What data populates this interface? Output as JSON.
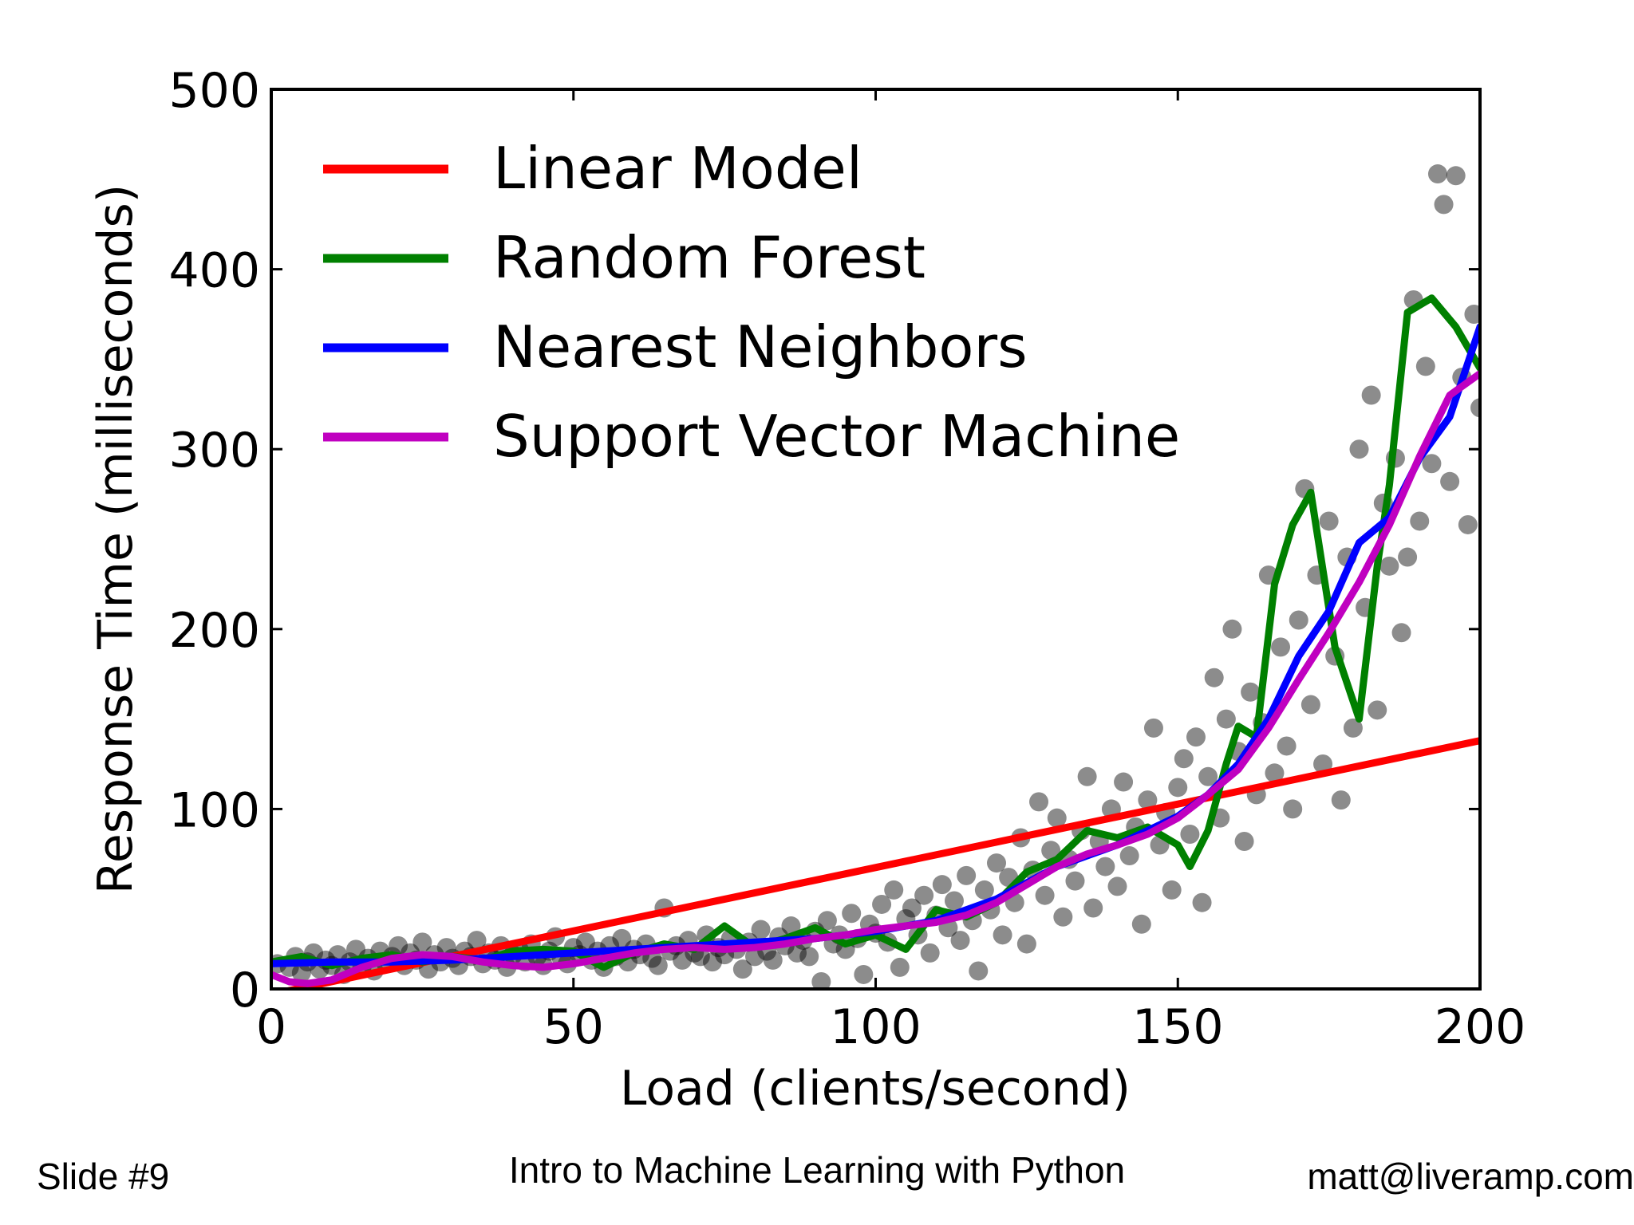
{
  "chart_data": {
    "type": "scatter",
    "xlabel": "Load (clients/second)",
    "ylabel": "Response Time (milliseconds)",
    "xlim": [
      0,
      200
    ],
    "ylim": [
      0,
      500
    ],
    "x_ticks": [
      "0",
      "50",
      "100",
      "150",
      "200"
    ],
    "y_ticks": [
      "0",
      "100",
      "200",
      "300",
      "400",
      "500"
    ],
    "legend_position": "top-left",
    "scatter_color": "#000000",
    "points": [
      [
        1,
        14
      ],
      [
        3,
        12
      ],
      [
        4,
        18
      ],
      [
        5,
        9
      ],
      [
        6,
        15
      ],
      [
        7,
        20
      ],
      [
        8,
        11
      ],
      [
        9,
        16
      ],
      [
        10,
        13
      ],
      [
        11,
        19
      ],
      [
        12,
        8
      ],
      [
        13,
        15
      ],
      [
        14,
        22
      ],
      [
        15,
        12
      ],
      [
        16,
        17
      ],
      [
        17,
        10
      ],
      [
        18,
        21
      ],
      [
        19,
        14
      ],
      [
        20,
        18
      ],
      [
        21,
        24
      ],
      [
        22,
        13
      ],
      [
        23,
        20
      ],
      [
        24,
        16
      ],
      [
        25,
        26
      ],
      [
        26,
        11
      ],
      [
        27,
        19
      ],
      [
        28,
        15
      ],
      [
        29,
        23
      ],
      [
        30,
        17
      ],
      [
        31,
        13
      ],
      [
        32,
        21
      ],
      [
        33,
        18
      ],
      [
        34,
        27
      ],
      [
        35,
        14
      ],
      [
        36,
        20
      ],
      [
        37,
        16
      ],
      [
        38,
        24
      ],
      [
        39,
        12
      ],
      [
        40,
        19
      ],
      [
        41,
        22
      ],
      [
        42,
        15
      ],
      [
        43,
        25
      ],
      [
        44,
        18
      ],
      [
        45,
        13
      ],
      [
        46,
        21
      ],
      [
        47,
        29
      ],
      [
        48,
        17
      ],
      [
        49,
        14
      ],
      [
        50,
        23
      ],
      [
        51,
        19
      ],
      [
        52,
        26
      ],
      [
        53,
        16
      ],
      [
        54,
        21
      ],
      [
        55,
        12
      ],
      [
        56,
        24
      ],
      [
        57,
        18
      ],
      [
        58,
        28
      ],
      [
        59,
        15
      ],
      [
        60,
        22
      ],
      [
        61,
        19
      ],
      [
        62,
        25
      ],
      [
        63,
        17
      ],
      [
        64,
        13
      ],
      [
        65,
        45
      ],
      [
        66,
        21
      ],
      [
        67,
        24
      ],
      [
        68,
        16
      ],
      [
        69,
        27
      ],
      [
        70,
        20
      ],
      [
        71,
        18
      ],
      [
        72,
        30
      ],
      [
        73,
        15
      ],
      [
        74,
        23
      ],
      [
        75,
        19
      ],
      [
        76,
        28
      ],
      [
        77,
        22
      ],
      [
        78,
        11
      ],
      [
        79,
        26
      ],
      [
        80,
        18
      ],
      [
        81,
        33
      ],
      [
        82,
        21
      ],
      [
        83,
        16
      ],
      [
        84,
        29
      ],
      [
        85,
        24
      ],
      [
        86,
        35
      ],
      [
        87,
        20
      ],
      [
        88,
        27
      ],
      [
        89,
        18
      ],
      [
        90,
        32
      ],
      [
        91,
        4
      ],
      [
        92,
        38
      ],
      [
        93,
        25
      ],
      [
        94,
        30
      ],
      [
        95,
        22
      ],
      [
        96,
        42
      ],
      [
        97,
        28
      ],
      [
        98,
        8
      ],
      [
        99,
        36
      ],
      [
        100,
        31
      ],
      [
        101,
        47
      ],
      [
        102,
        26
      ],
      [
        103,
        55
      ],
      [
        104,
        12
      ],
      [
        105,
        39
      ],
      [
        106,
        45
      ],
      [
        107,
        30
      ],
      [
        108,
        52
      ],
      [
        109,
        20
      ],
      [
        110,
        41
      ],
      [
        111,
        58
      ],
      [
        112,
        34
      ],
      [
        113,
        49
      ],
      [
        114,
        27
      ],
      [
        115,
        63
      ],
      [
        116,
        38
      ],
      [
        117,
        10
      ],
      [
        118,
        55
      ],
      [
        119,
        44
      ],
      [
        120,
        70
      ],
      [
        121,
        30
      ],
      [
        122,
        62
      ],
      [
        123,
        48
      ],
      [
        124,
        84
      ],
      [
        125,
        25
      ],
      [
        126,
        66
      ],
      [
        127,
        104
      ],
      [
        128,
        52
      ],
      [
        129,
        77
      ],
      [
        130,
        95
      ],
      [
        131,
        40
      ],
      [
        132,
        72
      ],
      [
        133,
        60
      ],
      [
        134,
        88
      ],
      [
        135,
        118
      ],
      [
        136,
        45
      ],
      [
        137,
        82
      ],
      [
        138,
        68
      ],
      [
        139,
        100
      ],
      [
        140,
        57
      ],
      [
        141,
        115
      ],
      [
        142,
        74
      ],
      [
        143,
        90
      ],
      [
        144,
        36
      ],
      [
        145,
        105
      ],
      [
        146,
        145
      ],
      [
        147,
        80
      ],
      [
        148,
        98
      ],
      [
        149,
        55
      ],
      [
        150,
        112
      ],
      [
        151,
        128
      ],
      [
        152,
        86
      ],
      [
        153,
        140
      ],
      [
        154,
        48
      ],
      [
        155,
        118
      ],
      [
        156,
        173
      ],
      [
        157,
        95
      ],
      [
        158,
        150
      ],
      [
        159,
        200
      ],
      [
        160,
        132
      ],
      [
        161,
        82
      ],
      [
        162,
        165
      ],
      [
        163,
        108
      ],
      [
        164,
        148
      ],
      [
        165,
        230
      ],
      [
        166,
        120
      ],
      [
        167,
        190
      ],
      [
        168,
        135
      ],
      [
        169,
        100
      ],
      [
        170,
        205
      ],
      [
        171,
        278
      ],
      [
        172,
        158
      ],
      [
        173,
        230
      ],
      [
        174,
        125
      ],
      [
        175,
        260
      ],
      [
        176,
        185
      ],
      [
        177,
        105
      ],
      [
        178,
        240
      ],
      [
        179,
        145
      ],
      [
        180,
        300
      ],
      [
        181,
        212
      ],
      [
        182,
        330
      ],
      [
        183,
        155
      ],
      [
        184,
        270
      ],
      [
        185,
        235
      ],
      [
        186,
        295
      ],
      [
        187,
        198
      ],
      [
        188,
        240
      ],
      [
        189,
        383
      ],
      [
        190,
        260
      ],
      [
        191,
        346
      ],
      [
        192,
        292
      ],
      [
        193,
        453
      ],
      [
        194,
        436
      ],
      [
        195,
        282
      ],
      [
        196,
        452
      ],
      [
        197,
        340
      ],
      [
        198,
        258
      ],
      [
        199,
        375
      ],
      [
        200,
        323
      ]
    ],
    "series": [
      {
        "name": "Linear Model",
        "color": "#ff0000",
        "x": [
          0,
          200
        ],
        "values": [
          -3,
          138
        ]
      },
      {
        "name": "Random Forest",
        "color": "#008000",
        "x": [
          0,
          5,
          10,
          15,
          20,
          25,
          30,
          35,
          40,
          45,
          50,
          55,
          60,
          65,
          70,
          75,
          80,
          85,
          90,
          95,
          100,
          105,
          110,
          115,
          120,
          125,
          130,
          135,
          140,
          145,
          150,
          152,
          155,
          158,
          160,
          163,
          166,
          169,
          172,
          176,
          180,
          183,
          185,
          188,
          192,
          196,
          200
        ],
        "values": [
          15,
          18,
          13,
          17,
          19,
          15,
          18,
          16,
          21,
          22,
          21,
          12,
          20,
          25,
          22,
          35,
          23,
          28,
          34,
          25,
          30,
          22,
          44,
          40,
          48,
          65,
          72,
          88,
          84,
          90,
          80,
          68,
          88,
          125,
          146,
          140,
          225,
          258,
          276,
          190,
          150,
          235,
          280,
          376,
          384,
          368,
          345
        ]
      },
      {
        "name": "Nearest Neighbors",
        "color": "#0000ff",
        "x": [
          0,
          10,
          20,
          30,
          40,
          50,
          60,
          70,
          80,
          90,
          100,
          110,
          120,
          130,
          140,
          150,
          155,
          160,
          165,
          170,
          175,
          180,
          185,
          190,
          195,
          200
        ],
        "values": [
          14,
          15,
          15,
          16,
          18,
          20,
          22,
          24,
          26,
          28,
          32,
          38,
          50,
          68,
          80,
          96,
          108,
          125,
          150,
          185,
          210,
          248,
          262,
          295,
          318,
          368
        ]
      },
      {
        "name": "Support Vector Machine",
        "color": "#c000c0",
        "x": [
          0,
          3,
          6,
          10,
          15,
          20,
          25,
          30,
          35,
          40,
          45,
          50,
          55,
          60,
          65,
          70,
          75,
          80,
          85,
          90,
          95,
          100,
          105,
          110,
          115,
          120,
          125,
          130,
          135,
          140,
          145,
          150,
          155,
          160,
          165,
          170,
          175,
          180,
          185,
          190,
          195,
          200
        ],
        "values": [
          8,
          4,
          3,
          5,
          12,
          17,
          19,
          18,
          15,
          13,
          12,
          14,
          17,
          20,
          22,
          23,
          22,
          23,
          25,
          28,
          30,
          33,
          35,
          37,
          41,
          48,
          58,
          68,
          75,
          80,
          86,
          95,
          108,
          122,
          145,
          172,
          198,
          226,
          258,
          296,
          330,
          342
        ]
      }
    ]
  },
  "footer": {
    "left": "Slide #9",
    "center": "Intro to Machine Learning with Python",
    "right": "matt@liveramp.com"
  }
}
